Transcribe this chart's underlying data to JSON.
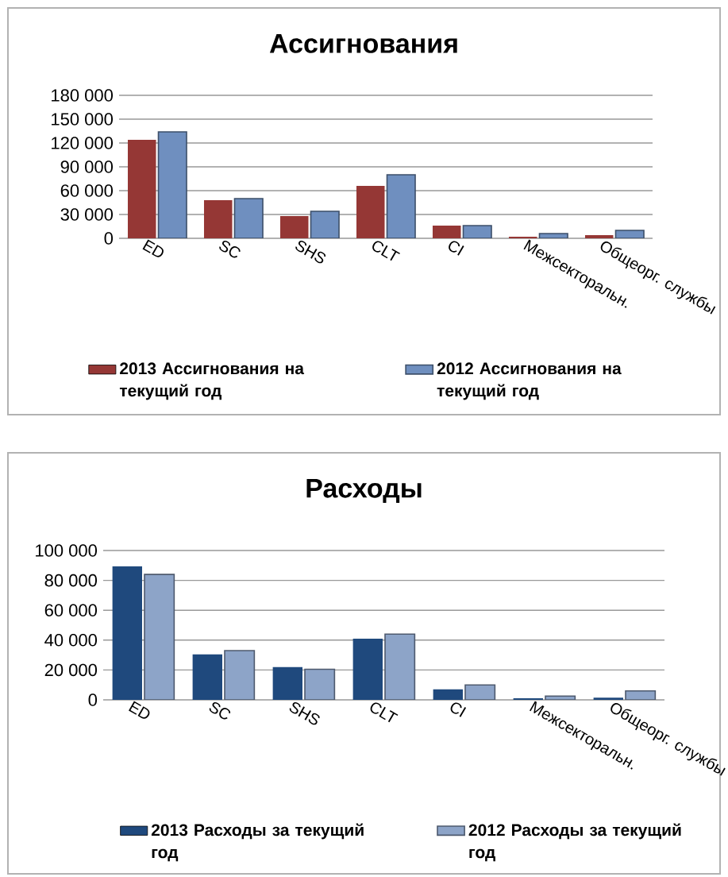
{
  "chart_data": [
    {
      "type": "bar",
      "title": "Ассигнования",
      "categories": [
        "ED",
        "SC",
        "SHS",
        "CLT",
        "CI",
        "Межсекторальн.",
        "Общеорг. службы"
      ],
      "series": [
        {
          "name": "2013 Ассигнования на текущий год",
          "color": "#953735",
          "values": [
            124000,
            48000,
            28000,
            66000,
            16000,
            2000,
            4000
          ]
        },
        {
          "name": "2012 Ассигнования на текущий год",
          "color": "#6f8fbf",
          "values": [
            134000,
            50000,
            34000,
            80000,
            16000,
            6000,
            10000
          ]
        }
      ],
      "ylim": [
        0,
        180000
      ],
      "yticks": [
        0,
        {
          "value": 30000,
          "label": "30 000"
        },
        {
          "value": 60000,
          "label": "60 000"
        },
        {
          "value": 90000,
          "label": "90 000"
        },
        {
          "value": 120000,
          "label": "120 000"
        },
        {
          "value": 150000,
          "label": "150 000"
        },
        {
          "value": 180000,
          "label": "180 000"
        }
      ],
      "grid": "y",
      "legend": "bottom"
    },
    {
      "type": "bar",
      "title": "Расходы",
      "categories": [
        "ED",
        "SC",
        "SHS",
        "CLT",
        "CI",
        "Межсекторальн.",
        "Общеорг. службы"
      ],
      "series": [
        {
          "name": "2013 Расходы за текущий год",
          "color": "#1f497d",
          "values": [
            89500,
            30500,
            22000,
            41000,
            7000,
            1000,
            1500
          ]
        },
        {
          "name": "2012 Расходы за текущий год",
          "color": "#8da4c8",
          "values": [
            84000,
            33000,
            20500,
            44000,
            10000,
            2500,
            6000
          ]
        }
      ],
      "ylim": [
        0,
        100000
      ],
      "yticks": [
        0,
        {
          "value": 20000,
          "label": "20 000"
        },
        {
          "value": 40000,
          "label": "40 000"
        },
        {
          "value": 60000,
          "label": "60 000"
        },
        {
          "value": 80000,
          "label": "80 000"
        },
        {
          "value": 100000,
          "label": "100 000"
        }
      ],
      "grid": "y",
      "legend": "bottom"
    }
  ]
}
